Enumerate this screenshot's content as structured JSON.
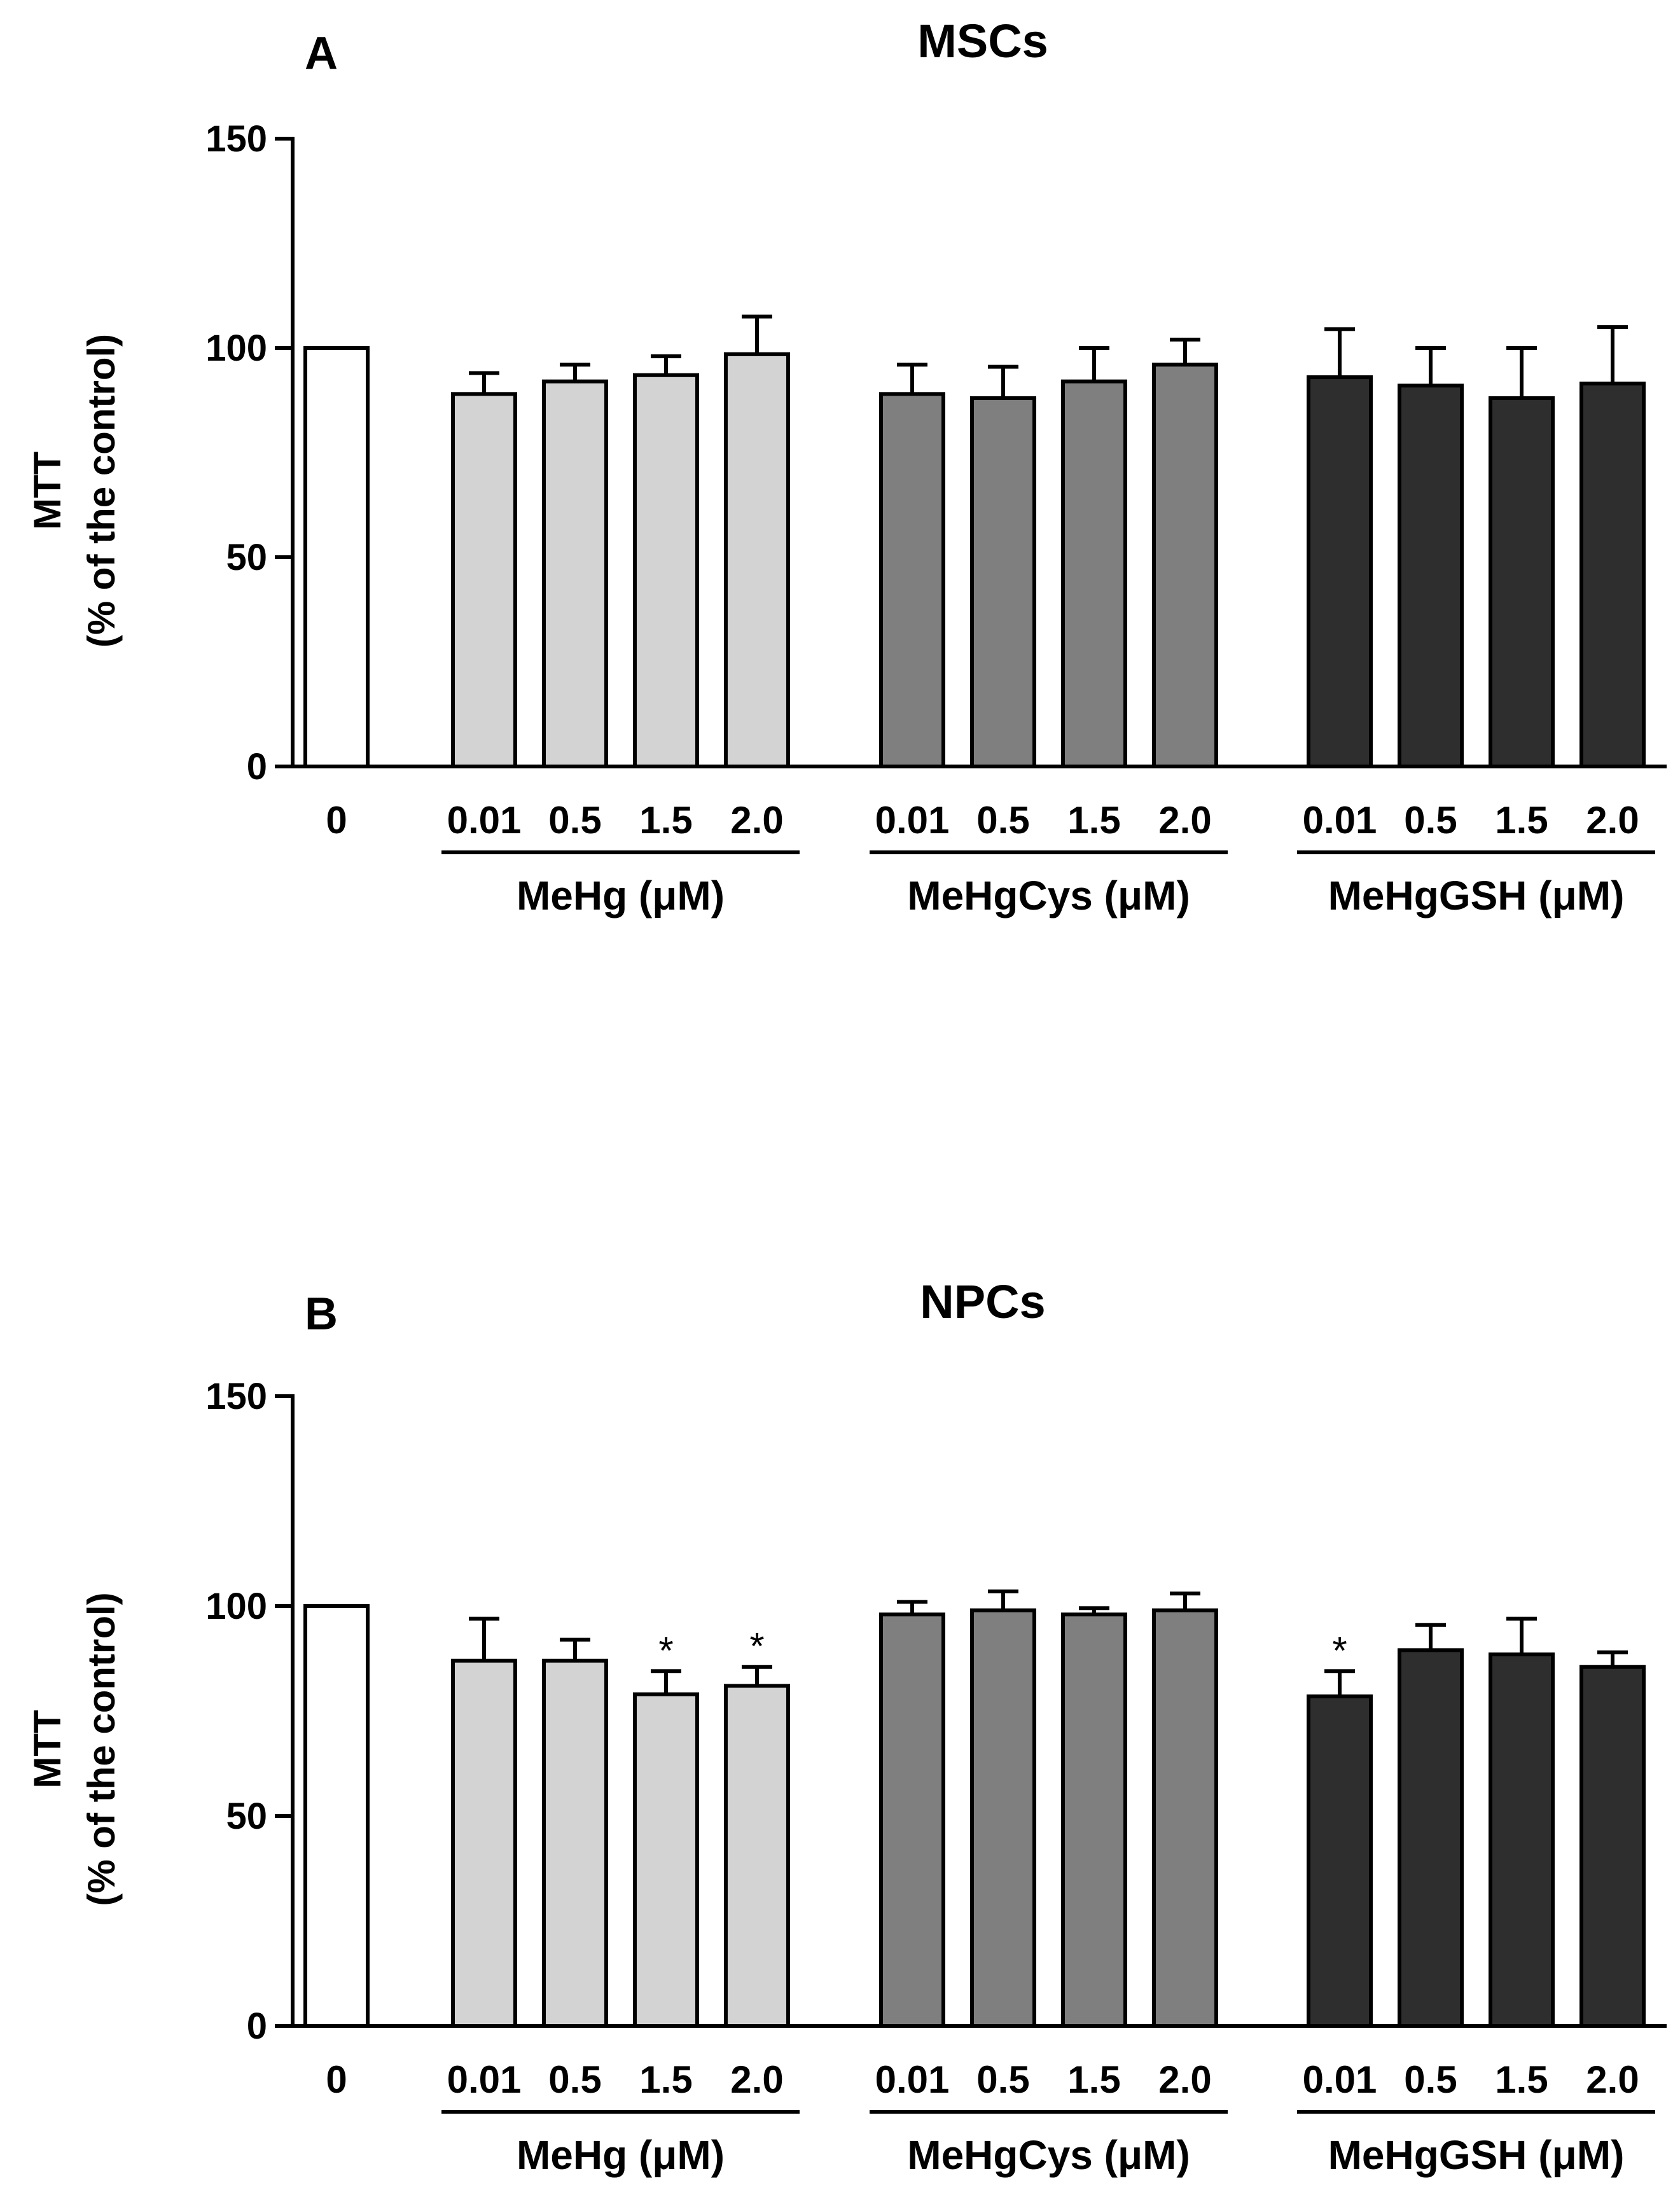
{
  "chart_data": [
    {
      "type": "bar",
      "panel_label": "A",
      "title": "MSCs",
      "ylabel_line1": "MTT",
      "ylabel_line2": "(% of the control)",
      "ylim": [
        0,
        150
      ],
      "yticks": [
        "0",
        "50",
        "100",
        "150"
      ],
      "control": {
        "label": "0",
        "value": 100,
        "color": "#ffffff"
      },
      "categories": [
        "0.01",
        "0.5",
        "1.5",
        "2.0"
      ],
      "series": [
        {
          "name": "MeHg (μM)",
          "color": "#d3d3d3",
          "values": [
            89,
            92,
            93.5,
            98.5
          ],
          "errors": [
            5,
            4,
            4.5,
            9
          ],
          "significant": [
            false,
            false,
            false,
            false
          ]
        },
        {
          "name": "MeHgCys (μM)",
          "color": "#7f7f7f",
          "values": [
            89,
            88,
            92,
            96
          ],
          "errors": [
            7,
            7.5,
            8,
            6
          ],
          "significant": [
            false,
            false,
            false,
            false
          ]
        },
        {
          "name": "MeHgGSH (μM)",
          "color": "#2e2e2e",
          "values": [
            93,
            91,
            88,
            91.5
          ],
          "errors": [
            11.5,
            9,
            12,
            13.5
          ],
          "significant": [
            false,
            false,
            false,
            false
          ]
        }
      ],
      "significance_marker": "*"
    },
    {
      "type": "bar",
      "panel_label": "B",
      "title": "NPCs",
      "ylabel_line1": "MTT",
      "ylabel_line2": "(% of the control)",
      "ylim": [
        0,
        150
      ],
      "yticks": [
        "0",
        "50",
        "100",
        "150"
      ],
      "control": {
        "label": "0",
        "value": 100,
        "color": "#ffffff"
      },
      "categories": [
        "0.01",
        "0.5",
        "1.5",
        "2.0"
      ],
      "series": [
        {
          "name": "MeHg (μM)",
          "color": "#d3d3d3",
          "values": [
            87,
            87,
            79,
            81
          ],
          "errors": [
            10,
            5,
            5.5,
            4.5
          ],
          "significant": [
            false,
            false,
            true,
            true
          ]
        },
        {
          "name": "MeHgCys (μM)",
          "color": "#7f7f7f",
          "values": [
            98,
            99,
            98,
            99
          ],
          "errors": [
            3,
            4.5,
            1.5,
            4
          ],
          "significant": [
            false,
            false,
            false,
            false
          ]
        },
        {
          "name": "MeHgGSH (μM)",
          "color": "#2e2e2e",
          "values": [
            78.5,
            89.5,
            88.5,
            85.5
          ],
          "errors": [
            6,
            6,
            8.5,
            3.5
          ],
          "significant": [
            true,
            false,
            false,
            false
          ]
        }
      ],
      "significance_marker": "*"
    }
  ]
}
